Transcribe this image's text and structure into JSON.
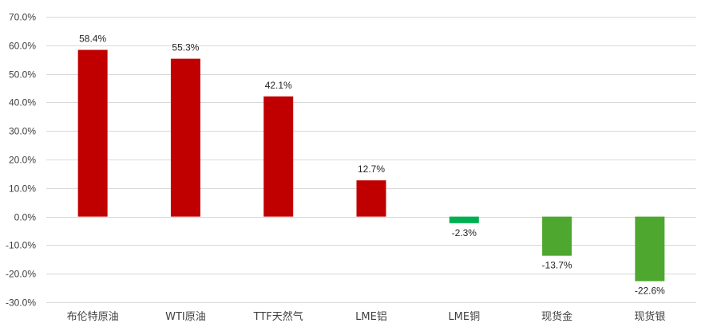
{
  "chart_data": {
    "type": "bar",
    "title": "",
    "xlabel": "",
    "ylabel": "",
    "categories": [
      "布伦特原油",
      "WTI原油",
      "TTF天然气",
      "LME铝",
      "LME铜",
      "现货金",
      "现货银"
    ],
    "values": [
      58.4,
      55.3,
      42.1,
      12.7,
      -2.3,
      -13.7,
      -22.6
    ],
    "data_labels": [
      "58.4%",
      "55.3%",
      "42.1%",
      "12.7%",
      "-2.3%",
      "-13.7%",
      "-22.6%"
    ],
    "bar_colors": [
      "#c00000",
      "#c00000",
      "#c00000",
      "#c00000",
      "#00b050",
      "#4ea72e",
      "#4ea72e"
    ],
    "ylim": [
      -30,
      70
    ],
    "yticks": [
      70,
      60,
      50,
      40,
      30,
      20,
      10,
      0,
      -10,
      -20,
      -30
    ],
    "ytick_labels": [
      "70.0%",
      "60.0%",
      "50.0%",
      "40.0%",
      "30.0%",
      "20.0%",
      "10.0%",
      "0.0%",
      "-10.0%",
      "-20.0%",
      "-30.0%"
    ],
    "grid": true,
    "legend": "none"
  }
}
